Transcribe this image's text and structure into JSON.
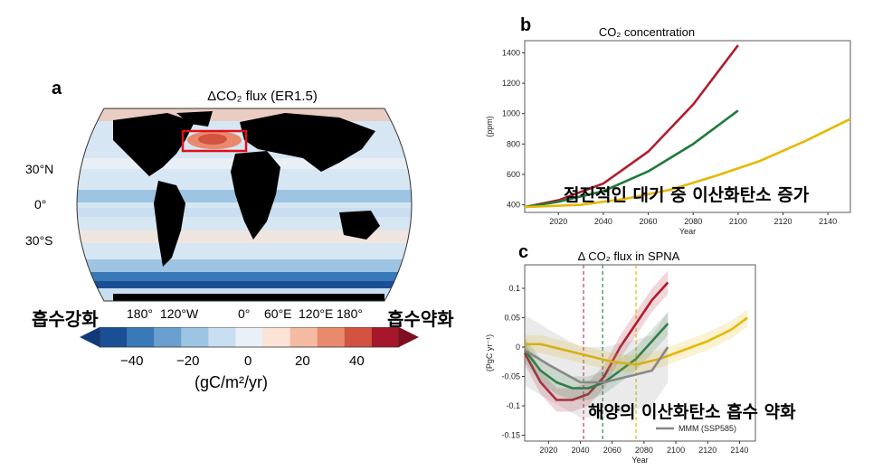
{
  "panel_a": {
    "letter": "a",
    "title": "ΔCO₂ flux (ER1.5)",
    "lat_labels": [
      "30°N",
      "0°",
      "30°S"
    ],
    "lon_labels": [
      "180°",
      "120°W",
      "0°",
      "60°E",
      "120°E",
      "180°"
    ],
    "colorbar": {
      "ticks": [
        "−40",
        "−20",
        "0",
        "20",
        "40"
      ],
      "unit_label": "(gC/m²/yr)",
      "colors": [
        "#1a4f96",
        "#3979b8",
        "#6aa0cf",
        "#9dc4e2",
        "#c9def0",
        "#eaf0f7",
        "#fbe3d6",
        "#f5bba2",
        "#e98a6c",
        "#d2533f",
        "#a6172b"
      ],
      "left_label": "흡수강화",
      "right_label": "흡수약화"
    }
  },
  "panel_b": {
    "letter": "b",
    "title": "CO₂ concentration",
    "ylabel": "(ppm)",
    "xlabel": "Year",
    "annotation": "점진적인 대기 중 이산화탄소 증가"
  },
  "panel_c": {
    "letter": "c",
    "title": "Δ CO₂ flux in SPNA",
    "ylabel": "(PgC yr⁻¹)",
    "xlabel": "Year",
    "annotation": "해양의 이산화탄소 흡수 약화",
    "legend": "MMM (SSP585)"
  },
  "chart_data": [
    {
      "type": "line",
      "title": "CO₂ concentration",
      "xlabel": "Year",
      "ylabel": "(ppm)",
      "xlim": [
        2005,
        2150
      ],
      "ylim": [
        350,
        1480
      ],
      "x_ticks": [
        2020,
        2040,
        2060,
        2080,
        2100,
        2120,
        2140
      ],
      "y_ticks": [
        400,
        600,
        800,
        1000,
        1200,
        1400
      ],
      "series": [
        {
          "color": "#b01c2e",
          "x": [
            2005,
            2020,
            2040,
            2060,
            2080,
            2100
          ],
          "values": [
            385,
            430,
            540,
            750,
            1060,
            1450
          ]
        },
        {
          "color": "#1f7a3a",
          "x": [
            2005,
            2020,
            2040,
            2060,
            2080,
            2100
          ],
          "values": [
            385,
            420,
            490,
            620,
            800,
            1020
          ]
        },
        {
          "color": "#e6b800",
          "x": [
            2005,
            2030,
            2050,
            2070,
            2090,
            2110,
            2130,
            2150
          ],
          "values": [
            385,
            400,
            440,
            500,
            590,
            690,
            820,
            965
          ]
        }
      ]
    },
    {
      "type": "line",
      "title": "Δ CO₂ flux in SPNA",
      "xlabel": "Year",
      "ylabel": "(PgC yr⁻¹)",
      "xlim": [
        2005,
        2150
      ],
      "ylim": [
        -0.16,
        0.14
      ],
      "x_ticks": [
        2020,
        2040,
        2060,
        2080,
        2100,
        2120,
        2140
      ],
      "y_ticks": [
        -0.15,
        -0.1,
        -0.05,
        0,
        0.05,
        0.1
      ],
      "vlines": [
        {
          "x": 2042,
          "color": "#c23b5a"
        },
        {
          "x": 2054,
          "color": "#2b8a4a"
        },
        {
          "x": 2075,
          "color": "#e6b800"
        }
      ],
      "series": [
        {
          "color": "#b01c2e",
          "band": 0.02,
          "x": [
            2005,
            2015,
            2025,
            2035,
            2045,
            2055,
            2065,
            2075,
            2085,
            2095
          ],
          "values": [
            -0.01,
            -0.06,
            -0.09,
            -0.09,
            -0.08,
            -0.05,
            0.0,
            0.04,
            0.08,
            0.11
          ]
        },
        {
          "color": "#1f7a3a",
          "band": 0.02,
          "x": [
            2005,
            2015,
            2025,
            2035,
            2045,
            2055,
            2065,
            2075,
            2085,
            2095
          ],
          "values": [
            -0.005,
            -0.04,
            -0.06,
            -0.07,
            -0.07,
            -0.06,
            -0.04,
            -0.02,
            0.01,
            0.04
          ]
        },
        {
          "color": "#e6b800",
          "band": 0.015,
          "x": [
            2005,
            2015,
            2030,
            2045,
            2060,
            2075,
            2090,
            2105,
            2120,
            2135,
            2145
          ],
          "values": [
            0.005,
            0.005,
            -0.005,
            -0.015,
            -0.025,
            -0.03,
            -0.02,
            -0.005,
            0.01,
            0.03,
            0.05
          ]
        },
        {
          "name": "MMM (SSP585)",
          "color": "#888888",
          "band": 0.06,
          "x": [
            2005,
            2020,
            2040,
            2055,
            2070,
            2085,
            2095
          ],
          "values": [
            -0.005,
            -0.03,
            -0.06,
            -0.06,
            -0.05,
            -0.04,
            0.0
          ]
        }
      ]
    }
  ]
}
